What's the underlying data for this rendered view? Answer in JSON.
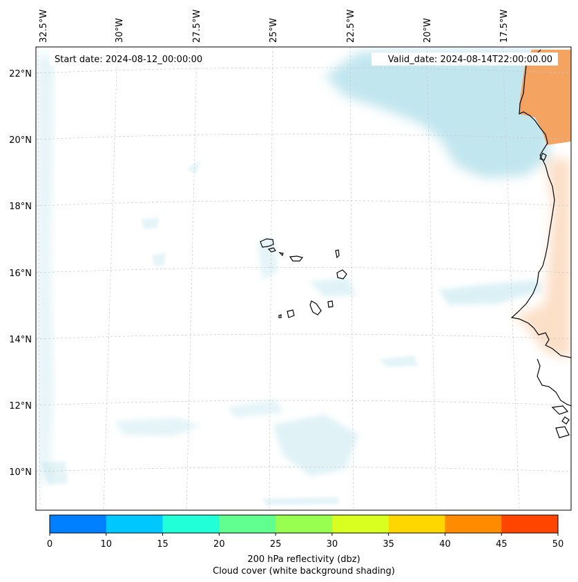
{
  "header": {
    "start_date": "Start date: 2024-08-12_00:00:00",
    "valid_date": "Valid_date: 2024-08-14T22:00:00.00"
  },
  "map": {
    "lon_labels": [
      "32.5°W",
      "30°W",
      "27.5°W",
      "25°W",
      "22.5°W",
      "20°W",
      "17.5°W"
    ],
    "lat_labels": [
      "22°N",
      "20°N",
      "18°N",
      "16°N",
      "14°N",
      "12°N",
      "10°N"
    ],
    "colors": {
      "land": "#f4a460",
      "cloud": "#a8dce8",
      "island_fill": "#f6cfae",
      "coastline": "#000000",
      "gridline": "#c8c8c8"
    }
  },
  "colorbar": {
    "ticks": [
      "0",
      "10",
      "15",
      "20",
      "25",
      "30",
      "35",
      "40",
      "45",
      "50"
    ],
    "colors": [
      "#0080ff",
      "#00c8ff",
      "#20ffd8",
      "#60ff90",
      "#98ff50",
      "#d8ff20",
      "#ffd700",
      "#ff8c00",
      "#ff4500"
    ],
    "title_line1": "200 hPa reflectivity (dbz)",
    "title_line2": "Cloud cover (white background shading)"
  }
}
